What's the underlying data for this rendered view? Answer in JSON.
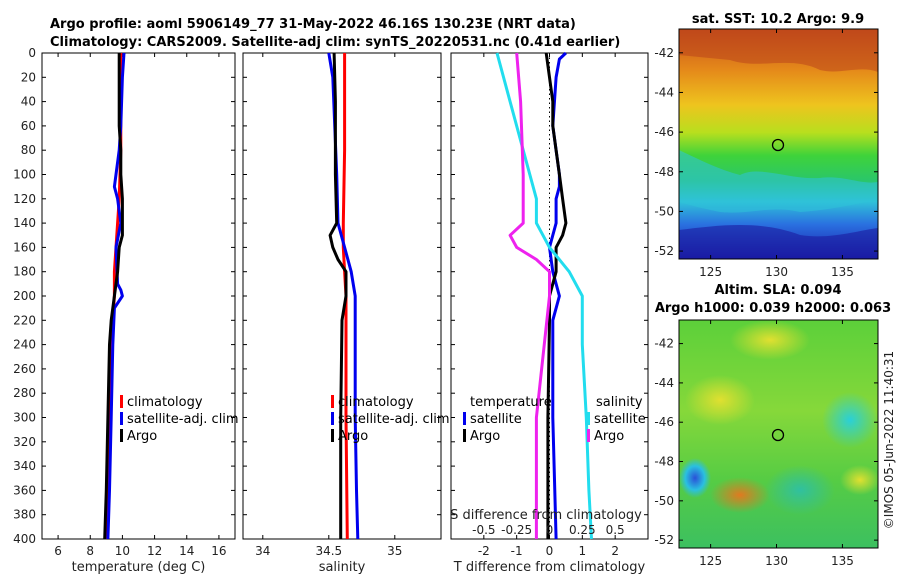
{
  "title": {
    "line1": "Argo profile: aoml 5906149_77 31-May-2022 46.16S 130.23E (NRT data)",
    "line2": "Climatology: CARS2009. Satellite-adj clim: synTS_20220531.nc (0.41d earlier)"
  },
  "depth_ticks": [
    "0",
    "20",
    "40",
    "60",
    "80",
    "100",
    "120",
    "140",
    "160",
    "180",
    "200",
    "220",
    "240",
    "260",
    "280",
    "300",
    "320",
    "340",
    "360",
    "380",
    "400"
  ],
  "colors": {
    "climatology": "#ff0000",
    "satellite": "#0000ee",
    "argo": "#000000",
    "sal_satellite": "#22ddee",
    "sal_argo": "#ee22ee"
  },
  "chart_data": [
    {
      "type": "line",
      "name": "temperature",
      "xlabel": "temperature (deg C)",
      "ylabel": "depth",
      "xlim": [
        5,
        17
      ],
      "ylim": [
        0,
        400
      ],
      "xticks": [
        "6",
        "8",
        "10",
        "12",
        "14",
        "16"
      ],
      "xtick_values": [
        6,
        8,
        10,
        12,
        14,
        16
      ],
      "legend": [
        "climatology",
        "satellite-adj. clim",
        "Argo"
      ],
      "series": [
        {
          "name": "climatology",
          "depth": [
            0,
            40,
            80,
            120,
            140,
            160,
            180,
            200,
            220,
            240,
            300,
            360,
            400
          ],
          "values": [
            9.9,
            9.9,
            9.9,
            9.8,
            9.7,
            9.6,
            9.5,
            9.5,
            9.4,
            9.3,
            9.2,
            9.1,
            9.0
          ]
        },
        {
          "name": "satellite-adj. clim",
          "depth": [
            0,
            20,
            60,
            80,
            100,
            110,
            120,
            140,
            160,
            190,
            195,
            200,
            210,
            240,
            300,
            360,
            400
          ],
          "values": [
            10.1,
            10.0,
            9.9,
            9.8,
            9.6,
            9.5,
            9.7,
            9.9,
            9.6,
            9.7,
            9.9,
            10.0,
            9.5,
            9.4,
            9.3,
            9.2,
            9.1
          ]
        },
        {
          "name": "Argo",
          "depth": [
            0,
            60,
            80,
            100,
            120,
            150,
            160,
            180,
            200,
            220,
            240,
            300,
            360,
            400
          ],
          "values": [
            9.8,
            9.8,
            9.9,
            9.9,
            10.0,
            10.0,
            9.8,
            9.7,
            9.5,
            9.3,
            9.2,
            9.1,
            9.0,
            8.9
          ]
        }
      ]
    },
    {
      "type": "line",
      "name": "salinity",
      "xlabel": "salinity",
      "ylabel": "depth",
      "xlim": [
        33.85,
        35.35
      ],
      "ylim": [
        0,
        400
      ],
      "xticks": [
        "34",
        "34.5",
        "35"
      ],
      "xtick_values": [
        34,
        34.5,
        35
      ],
      "legend": [
        "climatology",
        "satellite-adj. clim",
        "Argo"
      ],
      "series": [
        {
          "name": "climatology",
          "depth": [
            0,
            80,
            140,
            160,
            180,
            200,
            240,
            300,
            400
          ],
          "values": [
            34.62,
            34.62,
            34.61,
            34.61,
            34.62,
            34.63,
            34.63,
            34.63,
            34.64
          ]
        },
        {
          "name": "satellite-adj. clim",
          "depth": [
            0,
            20,
            100,
            140,
            160,
            180,
            200,
            240,
            300,
            360,
            400
          ],
          "values": [
            34.5,
            34.53,
            34.56,
            34.57,
            34.62,
            34.67,
            34.7,
            34.7,
            34.7,
            34.71,
            34.72
          ]
        },
        {
          "name": "Argo",
          "depth": [
            0,
            40,
            100,
            140,
            150,
            160,
            170,
            180,
            200,
            220,
            300,
            400
          ],
          "values": [
            34.54,
            34.55,
            34.55,
            34.56,
            34.51,
            34.53,
            34.57,
            34.63,
            34.63,
            34.6,
            34.59,
            34.59
          ]
        }
      ]
    },
    {
      "type": "line",
      "name": "difference from climatology",
      "xlabel": "T difference from climatology",
      "xlabel2": "S difference from climatology",
      "ylabel": "depth",
      "xlim": [
        -3,
        3
      ],
      "ylim": [
        0,
        400
      ],
      "xticks": [
        "-2",
        "-1",
        "0",
        "1",
        "2"
      ],
      "xtick_values": [
        -2,
        -1,
        0,
        1,
        2
      ],
      "xticks2": [
        "-0.5",
        "-0.25",
        "0",
        "0.25",
        "0.5"
      ],
      "legend_left": [
        "temperature",
        "satellite",
        "Argo"
      ],
      "legend_right": [
        "salinity",
        "satellite",
        "Argo"
      ],
      "series": [
        {
          "name": "T satellite",
          "depth": [
            0,
            5,
            20,
            60,
            80,
            100,
            110,
            120,
            140,
            160,
            180,
            200,
            220,
            300,
            400
          ],
          "values": [
            0.5,
            0.3,
            0.2,
            0.1,
            0.2,
            0.3,
            0.3,
            0.2,
            0.2,
            0.0,
            0.1,
            0.3,
            0.1,
            0.1,
            0.2
          ]
        },
        {
          "name": "T Argo",
          "depth": [
            0,
            20,
            40,
            60,
            80,
            100,
            120,
            140,
            150,
            160,
            180,
            200,
            220,
            300,
            400
          ],
          "values": [
            -0.1,
            0.0,
            0.1,
            0.1,
            0.2,
            0.3,
            0.4,
            0.5,
            0.4,
            0.2,
            0.2,
            0.0,
            0.0,
            -0.05,
            -0.05
          ]
        },
        {
          "name": "S satellite",
          "depth": [
            0,
            40,
            100,
            120,
            140,
            160,
            180,
            200,
            240,
            300,
            360,
            400
          ],
          "values": [
            -0.4,
            -0.3,
            -0.15,
            -0.1,
            -0.1,
            0.0,
            0.15,
            0.25,
            0.25,
            0.28,
            0.3,
            0.32
          ]
        },
        {
          "name": "S Argo",
          "depth": [
            0,
            40,
            100,
            140,
            150,
            160,
            170,
            180,
            200,
            300,
            400
          ],
          "values": [
            -0.25,
            -0.22,
            -0.2,
            -0.2,
            -0.3,
            -0.25,
            -0.1,
            0.0,
            0.0,
            -0.1,
            -0.1
          ]
        }
      ]
    }
  ],
  "sst_map": {
    "title": "sat. SST: 10.2 Argo: 9.9",
    "lat_ticks": [
      "-42",
      "-44",
      "-46",
      "-48",
      "-50",
      "-52"
    ],
    "lon_ticks": [
      "125",
      "130",
      "135"
    ]
  },
  "sla_map": {
    "title1": "Altim. SLA: 0.094",
    "title2": "Argo h1000: 0.039 h2000: 0.063",
    "lat_ticks": [
      "-42",
      "-44",
      "-46",
      "-48",
      "-50",
      "-52"
    ],
    "lon_ticks": [
      "125",
      "130",
      "135"
    ]
  },
  "credit": "©IMOS 05-Jun-2022 11:40:31"
}
